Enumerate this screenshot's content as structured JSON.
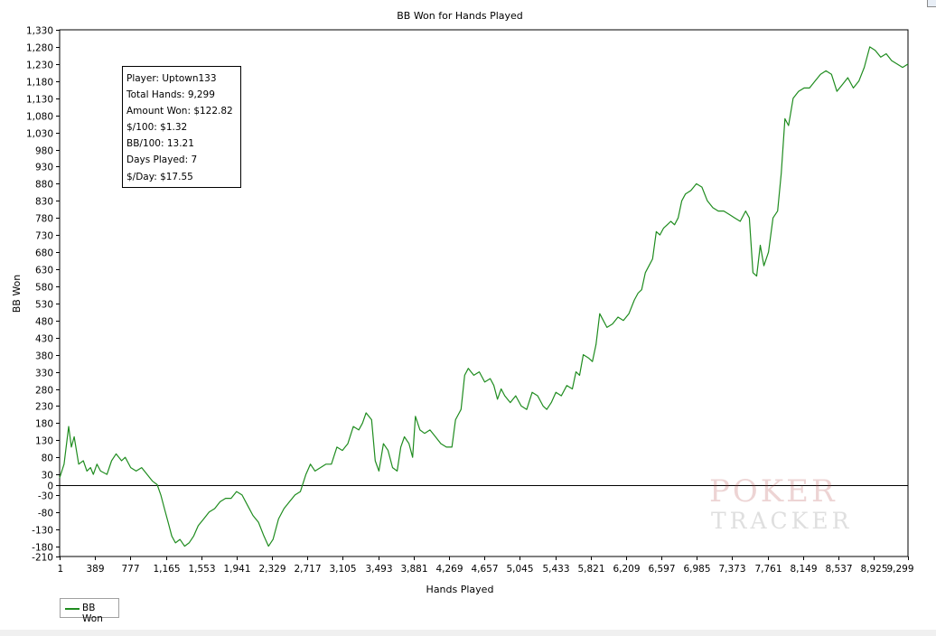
{
  "chart_data": {
    "type": "line",
    "title": "BB Won for Hands Played",
    "xlabel": "Hands Played",
    "ylabel": "BB Won",
    "xlim": [
      1,
      9299
    ],
    "ylim": [
      -210,
      1330
    ],
    "x_ticks": [
      "1",
      "389",
      "777",
      "1,165",
      "1,553",
      "1,941",
      "2,329",
      "2,717",
      "3,105",
      "3,493",
      "3,881",
      "4,269",
      "4,657",
      "5,045",
      "5,433",
      "5,821",
      "6,209",
      "6,597",
      "6,985",
      "7,373",
      "7,761",
      "8,149",
      "8,537",
      "8,925",
      "9,299"
    ],
    "y_ticks": [
      "1,330",
      "1,280",
      "1,230",
      "1,180",
      "1,130",
      "1,080",
      "1,030",
      "980",
      "930",
      "880",
      "830",
      "780",
      "730",
      "680",
      "630",
      "580",
      "530",
      "480",
      "430",
      "380",
      "330",
      "280",
      "230",
      "180",
      "130",
      "80",
      "30",
      "0",
      "-30",
      "-80",
      "-130",
      "-180",
      "-210"
    ],
    "grid": true,
    "legend_position": "bottom-left",
    "series": [
      {
        "name": "BB Won",
        "color": "#1f8c1f",
        "points": [
          [
            1,
            20
          ],
          [
            50,
            60
          ],
          [
            100,
            170
          ],
          [
            130,
            110
          ],
          [
            160,
            140
          ],
          [
            210,
            60
          ],
          [
            260,
            70
          ],
          [
            300,
            40
          ],
          [
            340,
            50
          ],
          [
            370,
            30
          ],
          [
            410,
            60
          ],
          [
            450,
            40
          ],
          [
            520,
            30
          ],
          [
            570,
            70
          ],
          [
            620,
            90
          ],
          [
            680,
            70
          ],
          [
            720,
            80
          ],
          [
            780,
            50
          ],
          [
            840,
            40
          ],
          [
            900,
            50
          ],
          [
            960,
            30
          ],
          [
            1020,
            10
          ],
          [
            1070,
            0
          ],
          [
            1110,
            -30
          ],
          [
            1150,
            -70
          ],
          [
            1190,
            -110
          ],
          [
            1230,
            -150
          ],
          [
            1270,
            -170
          ],
          [
            1320,
            -160
          ],
          [
            1370,
            -180
          ],
          [
            1420,
            -170
          ],
          [
            1470,
            -150
          ],
          [
            1520,
            -120
          ],
          [
            1580,
            -100
          ],
          [
            1640,
            -80
          ],
          [
            1700,
            -70
          ],
          [
            1760,
            -50
          ],
          [
            1820,
            -40
          ],
          [
            1880,
            -40
          ],
          [
            1940,
            -20
          ],
          [
            2000,
            -30
          ],
          [
            2060,
            -60
          ],
          [
            2120,
            -90
          ],
          [
            2180,
            -110
          ],
          [
            2240,
            -150
          ],
          [
            2290,
            -180
          ],
          [
            2340,
            -160
          ],
          [
            2400,
            -100
          ],
          [
            2460,
            -70
          ],
          [
            2520,
            -50
          ],
          [
            2580,
            -30
          ],
          [
            2640,
            -20
          ],
          [
            2700,
            30
          ],
          [
            2750,
            60
          ],
          [
            2800,
            40
          ],
          [
            2860,
            50
          ],
          [
            2920,
            60
          ],
          [
            2980,
            60
          ],
          [
            3040,
            110
          ],
          [
            3100,
            100
          ],
          [
            3160,
            120
          ],
          [
            3220,
            170
          ],
          [
            3280,
            160
          ],
          [
            3320,
            180
          ],
          [
            3360,
            210
          ],
          [
            3420,
            190
          ],
          [
            3460,
            70
          ],
          [
            3500,
            40
          ],
          [
            3550,
            120
          ],
          [
            3600,
            100
          ],
          [
            3650,
            50
          ],
          [
            3700,
            40
          ],
          [
            3740,
            110
          ],
          [
            3780,
            140
          ],
          [
            3830,
            120
          ],
          [
            3870,
            80
          ],
          [
            3900,
            200
          ],
          [
            3950,
            160
          ],
          [
            4000,
            150
          ],
          [
            4060,
            160
          ],
          [
            4120,
            140
          ],
          [
            4180,
            120
          ],
          [
            4240,
            110
          ],
          [
            4300,
            110
          ],
          [
            4340,
            190
          ],
          [
            4400,
            220
          ],
          [
            4440,
            320
          ],
          [
            4480,
            340
          ],
          [
            4540,
            320
          ],
          [
            4600,
            330
          ],
          [
            4660,
            300
          ],
          [
            4720,
            310
          ],
          [
            4760,
            290
          ],
          [
            4800,
            250
          ],
          [
            4840,
            280
          ],
          [
            4880,
            260
          ],
          [
            4940,
            240
          ],
          [
            5000,
            260
          ],
          [
            5060,
            230
          ],
          [
            5120,
            220
          ],
          [
            5180,
            270
          ],
          [
            5240,
            260
          ],
          [
            5300,
            230
          ],
          [
            5340,
            220
          ],
          [
            5390,
            240
          ],
          [
            5440,
            270
          ],
          [
            5500,
            260
          ],
          [
            5560,
            290
          ],
          [
            5620,
            280
          ],
          [
            5660,
            330
          ],
          [
            5700,
            320
          ],
          [
            5740,
            380
          ],
          [
            5800,
            370
          ],
          [
            5840,
            360
          ],
          [
            5880,
            410
          ],
          [
            5920,
            500
          ],
          [
            5960,
            480
          ],
          [
            6000,
            460
          ],
          [
            6060,
            470
          ],
          [
            6120,
            490
          ],
          [
            6180,
            480
          ],
          [
            6240,
            500
          ],
          [
            6300,
            540
          ],
          [
            6340,
            560
          ],
          [
            6380,
            570
          ],
          [
            6420,
            620
          ],
          [
            6460,
            640
          ],
          [
            6500,
            660
          ],
          [
            6540,
            740
          ],
          [
            6580,
            730
          ],
          [
            6620,
            750
          ],
          [
            6660,
            760
          ],
          [
            6700,
            770
          ],
          [
            6740,
            760
          ],
          [
            6780,
            780
          ],
          [
            6820,
            830
          ],
          [
            6860,
            850
          ],
          [
            6920,
            860
          ],
          [
            6980,
            880
          ],
          [
            7040,
            870
          ],
          [
            7100,
            830
          ],
          [
            7160,
            810
          ],
          [
            7220,
            800
          ],
          [
            7280,
            800
          ],
          [
            7340,
            790
          ],
          [
            7400,
            780
          ],
          [
            7460,
            770
          ],
          [
            7520,
            800
          ],
          [
            7560,
            780
          ],
          [
            7600,
            620
          ],
          [
            7640,
            610
          ],
          [
            7680,
            700
          ],
          [
            7720,
            640
          ],
          [
            7770,
            680
          ],
          [
            7820,
            780
          ],
          [
            7870,
            800
          ],
          [
            7910,
            910
          ],
          [
            7950,
            1070
          ],
          [
            7990,
            1050
          ],
          [
            8040,
            1130
          ],
          [
            8100,
            1150
          ],
          [
            8160,
            1160
          ],
          [
            8220,
            1160
          ],
          [
            8280,
            1180
          ],
          [
            8340,
            1200
          ],
          [
            8400,
            1210
          ],
          [
            8460,
            1200
          ],
          [
            8520,
            1150
          ],
          [
            8580,
            1170
          ],
          [
            8640,
            1190
          ],
          [
            8700,
            1160
          ],
          [
            8760,
            1180
          ],
          [
            8820,
            1220
          ],
          [
            8880,
            1280
          ],
          [
            8940,
            1270
          ],
          [
            9000,
            1250
          ],
          [
            9060,
            1260
          ],
          [
            9120,
            1240
          ],
          [
            9180,
            1230
          ],
          [
            9240,
            1220
          ],
          [
            9299,
            1230
          ]
        ]
      }
    ]
  },
  "info_box": {
    "player": "Player: Uptown133",
    "total_hands": "Total Hands: 9,299",
    "amount_won": "Amount Won: $122.82",
    "per_100": "$/100: $1.32",
    "bb_per_100": "BB/100: 13.21",
    "days_played": "Days Played: 7",
    "per_day": "$/Day: $17.55"
  },
  "legend": {
    "label": "BB Won",
    "color": "#1f8c1f"
  },
  "watermark": {
    "line1": "POKER",
    "line2": "TRACKER"
  }
}
